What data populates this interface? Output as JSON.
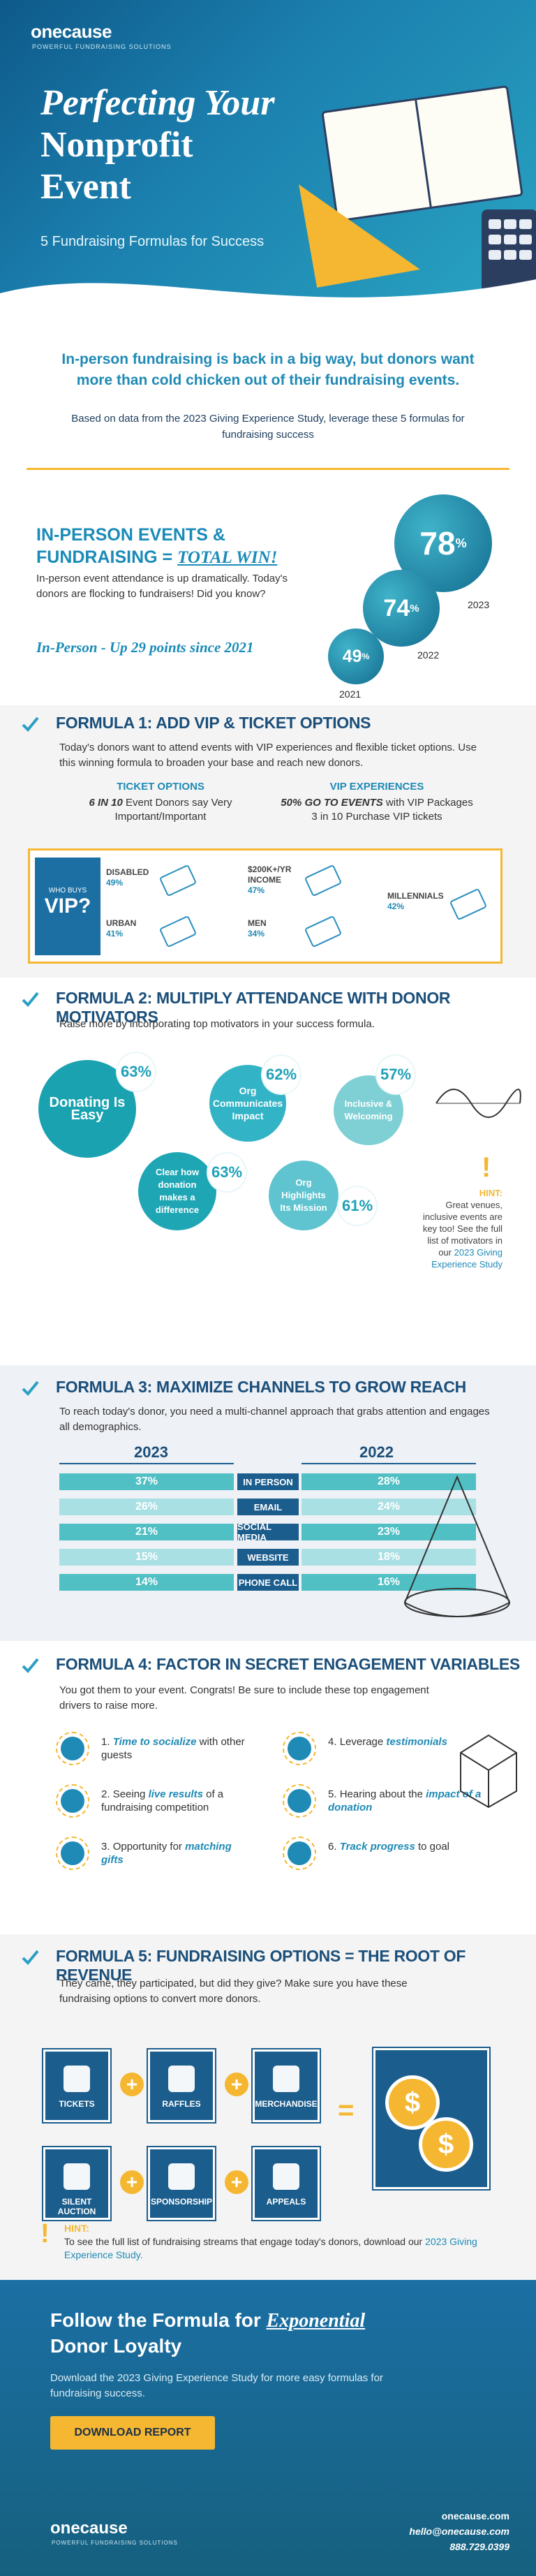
{
  "hero": {
    "brand": "onecause",
    "brand_tag": "POWERFUL FUNDRAISING SOLUTIONS",
    "title_line1": "Perfecting Your",
    "title_line2": "Nonprofit",
    "title_line3": "Event",
    "subtitle": "5 Fundraising Formulas for Success"
  },
  "intro": {
    "lead": "In-person fundraising is back in a big way, but donors want more than cold chicken out of their fundraising events.",
    "body": "Based on data from the 2023 Giving Experience Study, leverage these 5 formulas for fundraising success"
  },
  "stats": {
    "title_line1": "IN-PERSON EVENTS &",
    "title_line2": "FUNDRAISING =",
    "title_win": "TOTAL WIN!",
    "body": "In-person event attendance is up dramatically. Today's donors are flocking to fundraisers! Did you know?",
    "script": "In-Person - Up 29 points since 2021",
    "bubbles": [
      {
        "value": "78",
        "unit": "%",
        "year": "2023"
      },
      {
        "value": "74",
        "unit": "%",
        "year": "2022"
      },
      {
        "value": "49",
        "unit": "%",
        "year": "2021"
      }
    ]
  },
  "formula1": {
    "title": "FORMULA 1:  ADD VIP & TICKET OPTIONS",
    "desc": "Today's donors want to attend events with VIP experiences and flexible ticket options. Use this winning formula to broaden your base and reach new donors.",
    "col1_head": "TICKET OPTIONS",
    "col1_bold": "6 IN 10",
    "col1_text": " Event Donors say Very Important/Important",
    "col2_head": "VIP EXPERIENCES",
    "col2_bold": "50% GO TO EVENTS",
    "col2_text": " with VIP Packages",
    "col2_line2": "3 in 10 Purchase VIP tickets",
    "vip_small": "WHO BUYS",
    "vip_big": "VIP?",
    "cats": [
      {
        "name": "DISABLED",
        "value": "49%"
      },
      {
        "name": "URBAN",
        "value": "41%"
      },
      {
        "name": "$200K+/YR INCOME",
        "value": "47%"
      },
      {
        "name": "MEN",
        "value": "34%"
      },
      {
        "name": "MILLENNIALS",
        "value": "42%"
      }
    ]
  },
  "formula2": {
    "title": "FORMULA 2:  MULTIPLY ATTENDANCE WITH DONOR MOTIVATORS",
    "desc": "Raise more by incorporating top motivators in your success formula.",
    "motivators": [
      {
        "label": "Donating Is Easy",
        "value": "63%"
      },
      {
        "label": "Org Communicates Impact",
        "value": "62%"
      },
      {
        "label": "Inclusive & Welcoming",
        "value": "57%"
      },
      {
        "label": "Clear how donation makes a difference",
        "value": "63%"
      },
      {
        "label": "Org Highlights Its Mission",
        "value": "61%"
      }
    ],
    "hint_title": "HINT:",
    "hint_body": "Great venues, inclusive events are key too! See the full list of motivators in our",
    "hint_link": "2023 Giving Experience Study"
  },
  "formula3": {
    "title": "FORMULA 3:  MAXIMIZE CHANNELS TO GROW REACH",
    "desc": "To reach today's donor, you need a multi-channel approach that grabs attention and engages all demographics.",
    "year_a": "2023",
    "year_b": "2022",
    "rows": [
      {
        "channel": "IN PERSON",
        "a": "37%",
        "b": "28%"
      },
      {
        "channel": "EMAIL",
        "a": "26%",
        "b": "24%"
      },
      {
        "channel": "SOCIAL MEDIA",
        "a": "21%",
        "b": "23%"
      },
      {
        "channel": "WEBSITE",
        "a": "15%",
        "b": "18%"
      },
      {
        "channel": "PHONE CALL",
        "a": "14%",
        "b": "16%"
      }
    ]
  },
  "formula4": {
    "title": "FORMULA 4:  FACTOR IN SECRET ENGAGEMENT VARIABLES",
    "desc": "You got them to your event. Congrats! Be sure to include these top engagement drivers to raise more.",
    "items": [
      {
        "num": "1.",
        "pre": "",
        "em": "Time to socialize",
        "post": " with other guests"
      },
      {
        "num": "2.",
        "pre": "Seeing ",
        "em": "live results",
        "post": " of a fundraising competition"
      },
      {
        "num": "3.",
        "pre": "Opportunity for ",
        "em": "matching gifts",
        "post": ""
      },
      {
        "num": "4.",
        "pre": "Leverage ",
        "em": "testimonials",
        "post": ""
      },
      {
        "num": "5.",
        "pre": "Hearing about the ",
        "em": "impact of a donation",
        "post": ""
      },
      {
        "num": "6.",
        "pre": "",
        "em": "Track progress",
        "post": " to goal"
      }
    ]
  },
  "formula5": {
    "title": "FORMULA 5: FUNDRAISING OPTIONS = THE ROOT OF REVENUE",
    "desc": "They came, they participated, but did they give? Make sure you have these fundraising options to convert more donors.",
    "tiles": [
      "TICKETS",
      "RAFFLES",
      "MERCHANDISE",
      "SILENT AUCTION",
      "SPONSORSHIP",
      "APPEALS"
    ],
    "plus": "+",
    "equals": "=",
    "coin": "$",
    "hint_title": "HINT:",
    "hint_body": "To see the full list of fundraising streams that engage today's donors, download our",
    "hint_link": "2023 Giving Experience Study."
  },
  "footer": {
    "title_pre": "Follow the Formula for",
    "title_em": "Exponential",
    "title_post": "Donor Loyalty",
    "body": "Download the 2023 Giving Experience Study for more easy formulas for fundraising success.",
    "button": "DOWNLOAD REPORT",
    "brand": "onecause",
    "brand_tag": "POWERFUL FUNDRAISING SOLUTIONS",
    "web": "onecause.com",
    "email": "hello@onecause.com",
    "phone": "888.729.0399"
  }
}
